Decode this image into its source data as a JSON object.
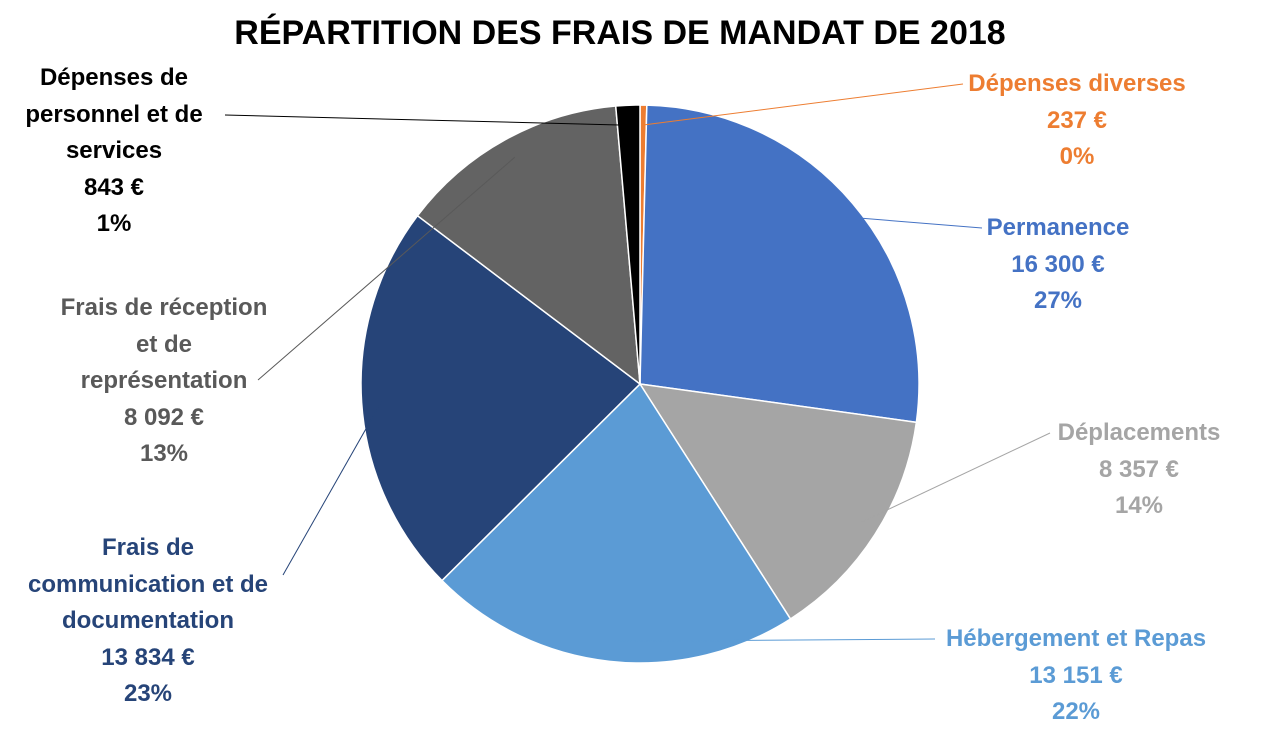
{
  "chart_data": {
    "type": "pie",
    "title": "RÉPARTITION DES FRAIS DE MANDAT DE 2018",
    "slices": [
      {
        "name": "Dépenses diverses",
        "name_lines": [
          "Dépenses diverses"
        ],
        "value": 237,
        "value_text": "237 €",
        "percent": "0%",
        "color": "#ED7D31"
      },
      {
        "name": "Permanence",
        "name_lines": [
          "Permanence"
        ],
        "value": 16300,
        "value_text": "16 300 €",
        "percent": "27%",
        "color": "#4472C4"
      },
      {
        "name": "Déplacements",
        "name_lines": [
          "Déplacements"
        ],
        "value": 8357,
        "value_text": "8 357 €",
        "percent": "14%",
        "color": "#A5A5A5"
      },
      {
        "name": "Hébergement et Repas",
        "name_lines": [
          "Hébergement et Repas"
        ],
        "value": 13151,
        "value_text": "13 151 €",
        "percent": "22%",
        "color": "#5B9BD5"
      },
      {
        "name": "Frais de communication et de documentation",
        "name_lines": [
          "Frais de",
          "communication et de",
          "documentation"
        ],
        "value": 13834,
        "value_text": "13 834 €",
        "percent": "23%",
        "color": "#264478"
      },
      {
        "name": "Frais de réception et de représentation",
        "name_lines": [
          "Frais de réception",
          "et de",
          "représentation"
        ],
        "value": 8092,
        "value_text": "8 092 €",
        "percent": "13%",
        "color": "#636363"
      },
      {
        "name": "Dépenses de personnel et de services",
        "name_lines": [
          "Dépenses de",
          "personnel et de",
          "services"
        ],
        "value": 843,
        "value_text": "843 €",
        "percent": "1%",
        "color": "#000000"
      }
    ],
    "label_colors": [
      "#ED7D31",
      "#4472C4",
      "#A5A5A5",
      "#5B9BD5",
      "#264478",
      "#595959",
      "#000000"
    ]
  }
}
